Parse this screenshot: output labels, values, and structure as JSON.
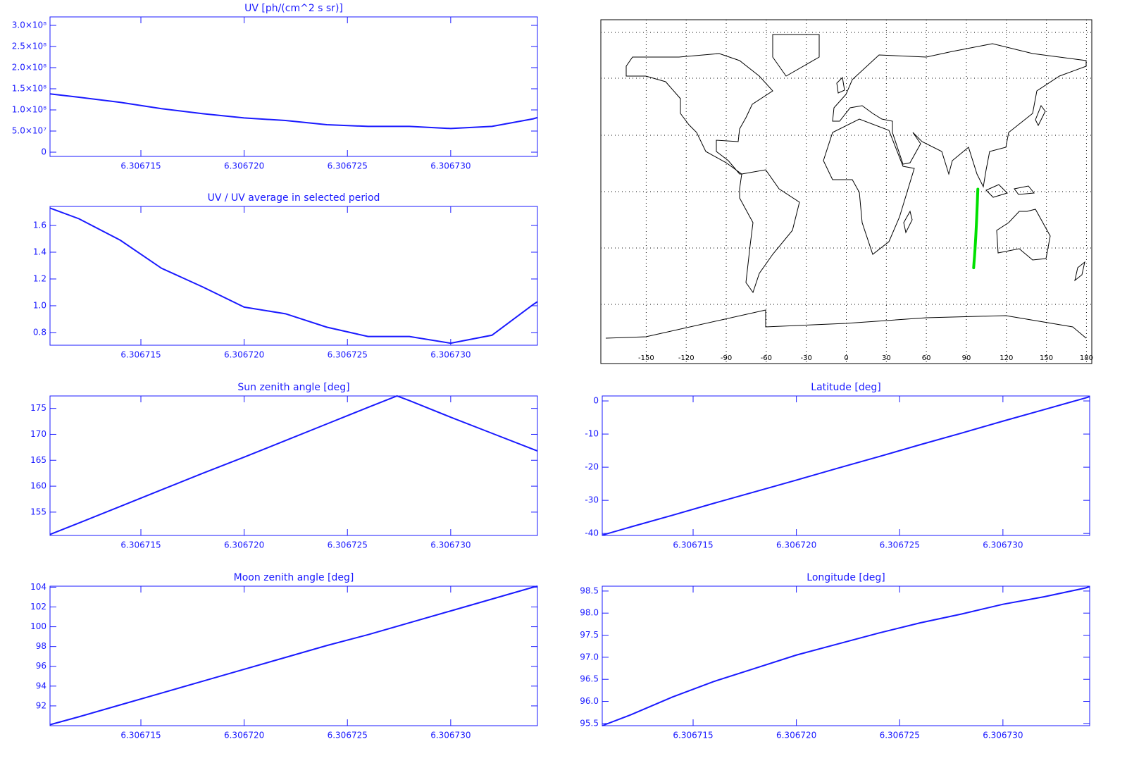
{
  "chart_data": [
    {
      "type": "line",
      "title": "UV [ph/(cm^2 s sr)]",
      "color": "#1a1aff",
      "x": [
        6.3067106,
        6.306712,
        6.306714,
        6.306716,
        6.306718,
        6.30672,
        6.306722,
        6.306724,
        6.306726,
        6.306728,
        6.30673,
        6.306732,
        6.306734,
        6.3067342
      ],
      "values": [
        138000000,
        130000000,
        118000000,
        103000000,
        91000000,
        81000000,
        75000000,
        65000000,
        61000000,
        61000000,
        56000000,
        61000000,
        79000000,
        82000000
      ],
      "xlim": [
        6.3067106,
        6.3067342
      ],
      "ylim": [
        -10000000,
        320000000
      ],
      "xticks": [
        6.306715,
        {
          "value": 6.30672,
          "label": "6.306720"
        },
        6.306725,
        {
          "value": 6.30673,
          "label": "6.306730"
        }
      ],
      "yticks": [
        0,
        {
          "value": 50000000,
          "label": "5.0×10⁷"
        },
        {
          "value": 100000000,
          "label": "1.0×10⁸"
        },
        {
          "value": 150000000,
          "label": "1.5×10⁸"
        },
        {
          "value": 200000000,
          "label": "2.0×10⁸"
        },
        {
          "value": 250000000,
          "label": "2.5×10⁸"
        },
        {
          "value": 300000000,
          "label": "3.0×10⁸"
        }
      ]
    },
    {
      "type": "line",
      "title": "UV / UV average in selected period",
      "color": "#1a1aff",
      "x": [
        6.3067106,
        6.306712,
        6.306714,
        6.306716,
        6.306718,
        6.30672,
        6.306722,
        6.306724,
        6.306726,
        6.306728,
        6.30673,
        6.306732,
        6.306734,
        6.3067342
      ],
      "values": [
        1.73,
        1.65,
        1.49,
        1.28,
        1.14,
        0.99,
        0.94,
        0.84,
        0.77,
        0.77,
        0.72,
        0.78,
        1.01,
        1.03
      ],
      "xlim": [
        6.3067106,
        6.3067342
      ],
      "ylim": [
        0.705,
        1.742
      ],
      "xticks": [
        6.306715,
        {
          "value": 6.30672,
          "label": "6.306720"
        },
        6.306725,
        {
          "value": 6.30673,
          "label": "6.306730"
        }
      ],
      "yticks": [
        0.8,
        {
          "value": 1,
          "label": "1.0"
        },
        1.2,
        1.4,
        1.6
      ]
    },
    {
      "type": "map",
      "xlim": [
        -184,
        184
      ],
      "ylim": [
        -91.4,
        91.4
      ],
      "xticks": [
        -150,
        -120,
        -90,
        -60,
        -30,
        0,
        30,
        60,
        90,
        120,
        150,
        180
      ],
      "series": [
        {
          "color": "#00e000",
          "x": [
            95.45,
            95.7,
            96.1,
            96.45,
            96.75,
            97.05,
            97.3,
            97.55,
            97.78,
            97.98,
            98.2,
            98.37,
            98.57,
            98.6
          ],
          "y": [
            -40.5,
            -38.0,
            -34.5,
            -30.9,
            -27.4,
            -23.9,
            -20.3,
            -16.8,
            -13.2,
            -9.7,
            -6.1,
            -2.6,
            0.9,
            1.3
          ]
        }
      ]
    },
    {
      "type": "line",
      "title": "Sun zenith angle [deg]",
      "color": "#1a1aff",
      "x": [
        6.3067106,
        6.306712,
        6.306714,
        6.306716,
        6.306718,
        6.30672,
        6.306722,
        6.306724,
        6.306726,
        6.3067274,
        6.306728,
        6.30673,
        6.306732,
        6.306734,
        6.3067342
      ],
      "values": [
        150.7,
        152.9,
        156.1,
        159.3,
        162.5,
        165.6,
        168.8,
        172.0,
        175.2,
        177.4,
        176.5,
        173.3,
        170.2,
        167.1,
        166.8
      ],
      "xlim": [
        6.3067106,
        6.3067342
      ],
      "ylim": [
        150.5,
        177.4
      ],
      "xticks": [
        6.306715,
        {
          "value": 6.30672,
          "label": "6.306720"
        },
        6.306725,
        {
          "value": 6.30673,
          "label": "6.306730"
        }
      ],
      "yticks": [
        155,
        160,
        165,
        170,
        175
      ]
    },
    {
      "type": "line",
      "title": "Latitude [deg]",
      "color": "#1a1aff",
      "x": [
        6.3067106,
        6.306712,
        6.306714,
        6.306716,
        6.306718,
        6.30672,
        6.306722,
        6.306724,
        6.306726,
        6.306728,
        6.30673,
        6.306732,
        6.306734,
        6.3067342
      ],
      "values": [
        -40.5,
        -38.0,
        -34.5,
        -30.9,
        -27.4,
        -23.9,
        -20.3,
        -16.8,
        -13.2,
        -9.7,
        -6.1,
        -2.6,
        0.9,
        1.3
      ],
      "xlim": [
        6.3067106,
        6.3067342
      ],
      "ylim": [
        -40.6,
        1.5
      ],
      "xticks": [
        6.306715,
        {
          "value": 6.30672,
          "label": "6.306720"
        },
        6.306725,
        {
          "value": 6.30673,
          "label": "6.306730"
        }
      ],
      "yticks": [
        -40,
        -30,
        -20,
        -10,
        0
      ]
    },
    {
      "type": "line",
      "title": "Moon zenith angle [deg]",
      "color": "#1a1aff",
      "x": [
        6.3067106,
        6.306712,
        6.306714,
        6.306716,
        6.306718,
        6.30672,
        6.306722,
        6.306724,
        6.306726,
        6.306728,
        6.30673,
        6.306732,
        6.306734,
        6.3067342
      ],
      "values": [
        90.1,
        90.9,
        92.1,
        93.3,
        94.5,
        95.7,
        96.9,
        98.1,
        99.2,
        100.4,
        101.6,
        102.8,
        104.0,
        104.1
      ],
      "xlim": [
        6.3067106,
        6.3067342
      ],
      "ylim": [
        90,
        104.1
      ],
      "xticks": [
        6.306715,
        {
          "value": 6.30672,
          "label": "6.306720"
        },
        6.306725,
        {
          "value": 6.30673,
          "label": "6.306730"
        }
      ],
      "yticks": [
        92,
        94,
        96,
        98,
        100,
        102,
        104
      ]
    },
    {
      "type": "line",
      "title": "Longitude [deg]",
      "color": "#1a1aff",
      "x": [
        6.3067106,
        6.306712,
        6.306714,
        6.306716,
        6.306718,
        6.30672,
        6.306722,
        6.306724,
        6.306726,
        6.306728,
        6.30673,
        6.306732,
        6.306734,
        6.3067342
      ],
      "values": [
        95.45,
        95.7,
        96.1,
        96.45,
        96.75,
        97.05,
        97.3,
        97.55,
        97.78,
        97.98,
        98.2,
        98.37,
        98.57,
        98.6
      ],
      "xlim": [
        6.3067106,
        6.3067342
      ],
      "ylim": [
        95.45,
        98.61
      ],
      "xticks": [
        6.306715,
        {
          "value": 6.30672,
          "label": "6.306720"
        },
        6.306725,
        {
          "value": 6.30673,
          "label": "6.306730"
        }
      ],
      "yticks": [
        95.5,
        {
          "value": 96,
          "label": "96.0"
        },
        96.5,
        {
          "value": 97,
          "label": "97.0"
        },
        97.5,
        {
          "value": 98,
          "label": "98.0"
        },
        98.5
      ]
    }
  ]
}
